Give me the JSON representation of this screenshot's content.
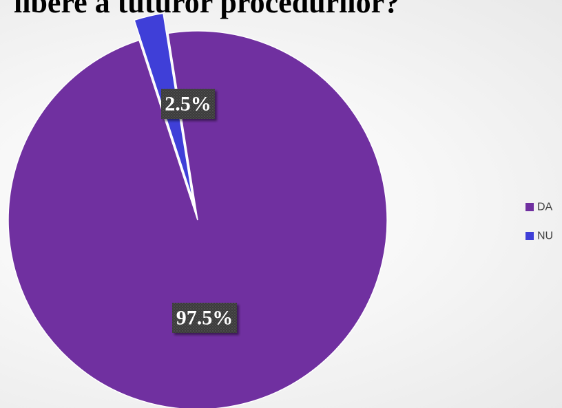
{
  "chart_data": {
    "type": "pie",
    "title": "libere a tuturor procedurilor?",
    "categories": [
      "DA",
      "NU"
    ],
    "values": [
      97.5,
      2.5
    ],
    "data_labels": [
      "97.5%",
      "2.5%"
    ],
    "colors": [
      "#7030A0",
      "#3F3FD8"
    ],
    "legend": {
      "position": "right",
      "entries": [
        "DA",
        "NU"
      ]
    },
    "exploded_slice": "NU"
  }
}
